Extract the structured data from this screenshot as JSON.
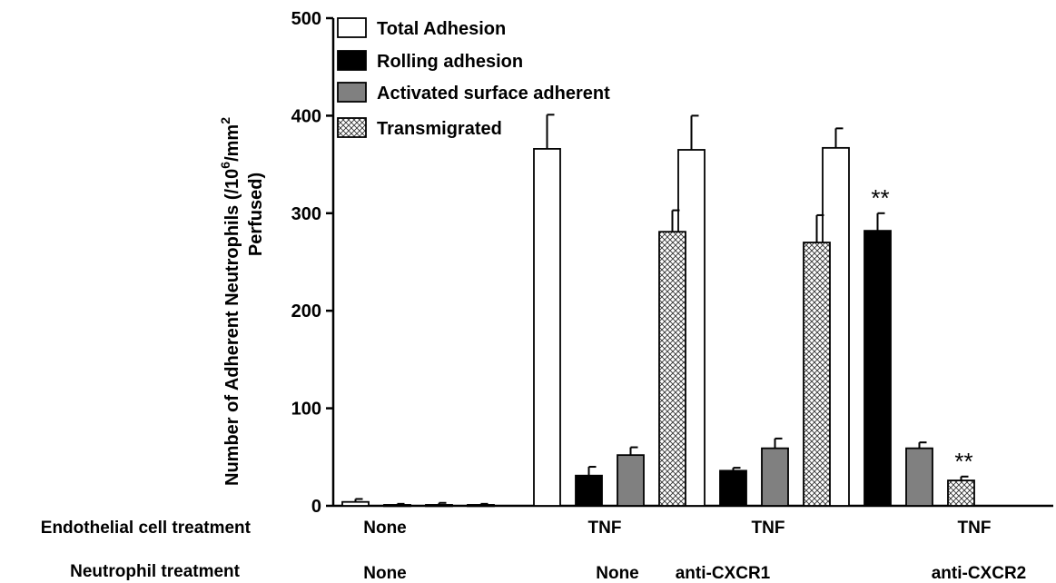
{
  "chart_data": {
    "type": "bar",
    "ylabel_line1": "Number of Adherent Neutrophils (/10",
    "ylabel_sup1": "6",
    "ylabel_mid": "/mm",
    "ylabel_sup2": "2",
    "ylabel_line2": "Perfused)",
    "ylim": [
      0,
      500
    ],
    "yticks": [
      "0",
      "100",
      "200",
      "300",
      "400",
      "500"
    ],
    "grid": false,
    "legend_position": "top-left",
    "row_labels": {
      "endothelial": "Endothelial cell treatment",
      "neutrophil": "Neutrophil treatment"
    },
    "groups": [
      {
        "endothelial": "None",
        "neutrophil": "None"
      },
      {
        "endothelial": "TNF",
        "neutrophil": "None"
      },
      {
        "endothelial": "TNF",
        "neutrophil": "anti-CXCR1"
      },
      {
        "endothelial": "TNF",
        "neutrophil": "anti-CXCR2"
      }
    ],
    "series": [
      {
        "name": "Total Adhesion",
        "style": "white",
        "values": [
          4,
          366,
          365,
          367
        ],
        "errors": [
          3,
          35,
          35,
          20
        ],
        "annotations": [
          "",
          "",
          "",
          ""
        ]
      },
      {
        "name": "Rolling adhesion",
        "style": "black",
        "values": [
          1,
          31,
          36,
          282
        ],
        "errors": [
          1,
          9,
          3,
          18
        ],
        "annotations": [
          "",
          "",
          "",
          "**"
        ]
      },
      {
        "name": "Activated surface adherent",
        "style": "gray",
        "values": [
          1,
          52,
          59,
          59
        ],
        "errors": [
          2,
          8,
          10,
          6
        ],
        "annotations": [
          "",
          "",
          "",
          ""
        ]
      },
      {
        "name": "Transmigrated",
        "style": "hatch",
        "values": [
          1,
          281,
          270,
          26
        ],
        "errors": [
          1,
          22,
          28,
          4
        ],
        "annotations": [
          "",
          "",
          "",
          "**"
        ]
      }
    ],
    "colors": {
      "white": "#ffffff",
      "black": "#000000",
      "gray": "#808080",
      "hatch_bg": "#ffffff",
      "hatch_line": "#444444"
    }
  }
}
